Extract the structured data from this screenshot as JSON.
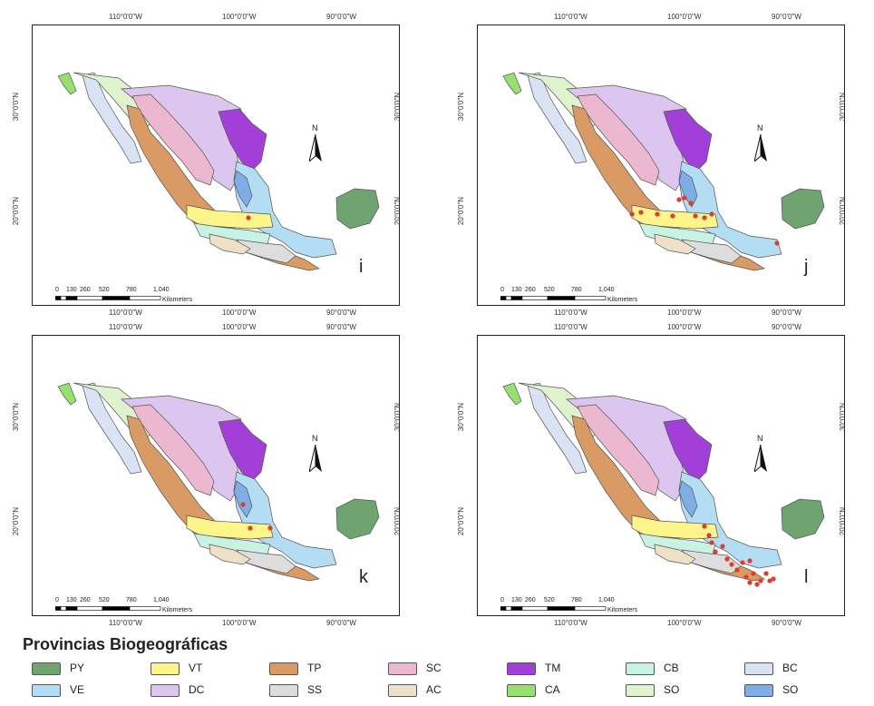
{
  "panels": [
    {
      "letter": "i"
    },
    {
      "letter": "j"
    },
    {
      "letter": "k"
    },
    {
      "letter": "l"
    }
  ],
  "graticule": {
    "lon_labels": [
      "110°0'0\"W",
      "100°0'0\"W",
      "90°0'0\"W"
    ],
    "lat_labels": [
      "30°0'0\"N",
      "20°0'0\"N"
    ]
  },
  "scale": {
    "ticks": [
      "0",
      "130",
      "260",
      "520",
      "780",
      "1,040"
    ],
    "units": "Kilometers"
  },
  "north_label": "N",
  "legend": {
    "title": "Provincias Biogeográficas",
    "items": [
      {
        "code": "PY",
        "color": "#6fa36f"
      },
      {
        "code": "VT",
        "color": "#fdf58a"
      },
      {
        "code": "TP",
        "color": "#d99a63"
      },
      {
        "code": "SC",
        "color": "#ebb8d0"
      },
      {
        "code": "TM",
        "color": "#a33fd9"
      },
      {
        "code": "CB",
        "color": "#c8f2e4"
      },
      {
        "code": "BC",
        "color": "#d9e3f3"
      },
      {
        "code": "VE",
        "color": "#b3ddf2"
      },
      {
        "code": "DC",
        "color": "#dcc6f0"
      },
      {
        "code": "SS",
        "color": "#dddddd"
      },
      {
        "code": "AC",
        "color": "#eee1c8"
      },
      {
        "code": "CA",
        "color": "#96e070"
      },
      {
        "code": "SO",
        "color": "#dff3cf"
      },
      {
        "code": "SO",
        "color": "#7faee6"
      }
    ]
  },
  "point_color": "#e53a2a"
}
